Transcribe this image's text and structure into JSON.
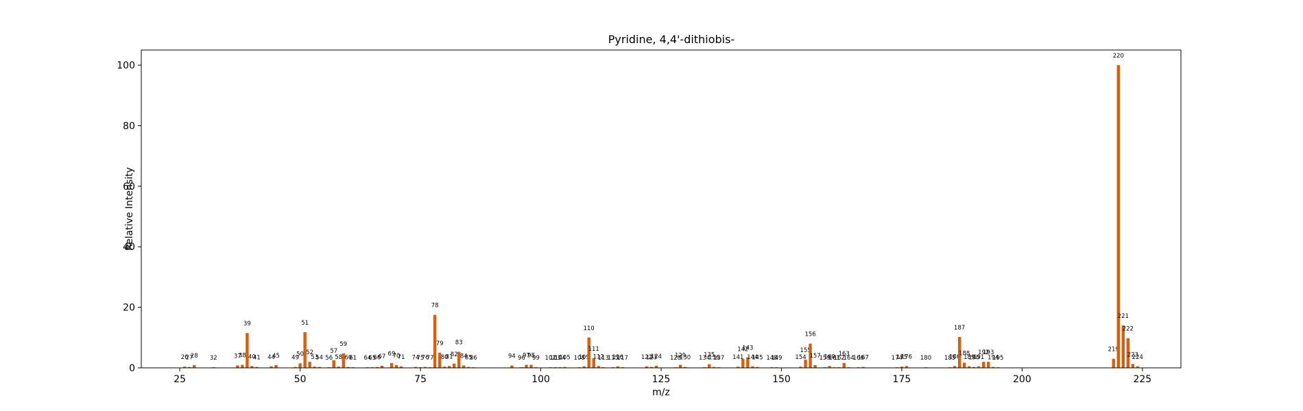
{
  "chart_data": {
    "type": "bar",
    "title": "Pyridine, 4,4'-dithiobis-",
    "xlabel": "m/z",
    "ylabel": "Relative Intensity",
    "xlim": [
      17,
      233
    ],
    "ylim": [
      0,
      105
    ],
    "xticks": [
      25,
      50,
      75,
      100,
      125,
      150,
      175,
      200,
      225
    ],
    "yticks": [
      0,
      20,
      40,
      60,
      80,
      100
    ],
    "bar_color": "#d95f0e",
    "grid": false,
    "peaks": [
      {
        "mz": 26,
        "intensity": 0.4,
        "label": "26"
      },
      {
        "mz": 27,
        "intensity": 0.3,
        "label": "27"
      },
      {
        "mz": 28,
        "intensity": 0.9,
        "label": "28"
      },
      {
        "mz": 32,
        "intensity": 0.2,
        "label": "32"
      },
      {
        "mz": 37,
        "intensity": 0.8,
        "label": "37"
      },
      {
        "mz": 38,
        "intensity": 1.0,
        "label": "38"
      },
      {
        "mz": 39,
        "intensity": 11.5,
        "label": "39"
      },
      {
        "mz": 40,
        "intensity": 0.6,
        "label": "40"
      },
      {
        "mz": 41,
        "intensity": 0.3,
        "label": "41"
      },
      {
        "mz": 44,
        "intensity": 0.5,
        "label": "44"
      },
      {
        "mz": 45,
        "intensity": 0.9,
        "label": "45"
      },
      {
        "mz": 49,
        "intensity": 0.3,
        "label": "49"
      },
      {
        "mz": 50,
        "intensity": 1.5,
        "label": "50"
      },
      {
        "mz": 51,
        "intensity": 11.8,
        "label": "51"
      },
      {
        "mz": 52,
        "intensity": 2.0,
        "label": "52"
      },
      {
        "mz": 53,
        "intensity": 0.4,
        "label": "53"
      },
      {
        "mz": 54,
        "intensity": 0.3,
        "label": "54"
      },
      {
        "mz": 56,
        "intensity": 0.2,
        "label": "56"
      },
      {
        "mz": 57,
        "intensity": 2.5,
        "label": "57"
      },
      {
        "mz": 58,
        "intensity": 0.4,
        "label": "58"
      },
      {
        "mz": 59,
        "intensity": 4.8,
        "label": "59"
      },
      {
        "mz": 60,
        "intensity": 0.3,
        "label": "60"
      },
      {
        "mz": 61,
        "intensity": 0.2,
        "label": "61"
      },
      {
        "mz": 64,
        "intensity": 0.2,
        "label": "64"
      },
      {
        "mz": 65,
        "intensity": 0.2,
        "label": "65"
      },
      {
        "mz": 66,
        "intensity": 0.3,
        "label": "66"
      },
      {
        "mz": 67,
        "intensity": 0.7,
        "label": "67"
      },
      {
        "mz": 69,
        "intensity": 1.6,
        "label": "69"
      },
      {
        "mz": 70,
        "intensity": 0.9,
        "label": "70"
      },
      {
        "mz": 71,
        "intensity": 0.5,
        "label": "71"
      },
      {
        "mz": 74,
        "intensity": 0.3,
        "label": "74"
      },
      {
        "mz": 75,
        "intensity": 0.2,
        "label": "75"
      },
      {
        "mz": 76,
        "intensity": 0.3,
        "label": "76"
      },
      {
        "mz": 77,
        "intensity": 0.2,
        "label": "77"
      },
      {
        "mz": 78,
        "intensity": 17.5,
        "label": "78"
      },
      {
        "mz": 79,
        "intensity": 5.0,
        "label": "79"
      },
      {
        "mz": 80,
        "intensity": 0.4,
        "label": "80"
      },
      {
        "mz": 81,
        "intensity": 0.6,
        "label": "81"
      },
      {
        "mz": 82,
        "intensity": 1.4,
        "label": "82"
      },
      {
        "mz": 83,
        "intensity": 5.3,
        "label": "83"
      },
      {
        "mz": 84,
        "intensity": 0.8,
        "label": "84"
      },
      {
        "mz": 85,
        "intensity": 0.3,
        "label": "85"
      },
      {
        "mz": 86,
        "intensity": 0.2,
        "label": "86"
      },
      {
        "mz": 94,
        "intensity": 0.8,
        "label": "94"
      },
      {
        "mz": 96,
        "intensity": 0.2,
        "label": "96"
      },
      {
        "mz": 97,
        "intensity": 1.0,
        "label": "97"
      },
      {
        "mz": 98,
        "intensity": 1.0,
        "label": "98"
      },
      {
        "mz": 99,
        "intensity": 0.2,
        "label": "99"
      },
      {
        "mz": 102,
        "intensity": 0.2,
        "label": "102"
      },
      {
        "mz": 103,
        "intensity": 0.2,
        "label": "103"
      },
      {
        "mz": 104,
        "intensity": 0.2,
        "label": "104"
      },
      {
        "mz": 105,
        "intensity": 0.3,
        "label": "105"
      },
      {
        "mz": 108,
        "intensity": 0.2,
        "label": "108"
      },
      {
        "mz": 109,
        "intensity": 0.5,
        "label": "109"
      },
      {
        "mz": 110,
        "intensity": 10.0,
        "label": "110"
      },
      {
        "mz": 111,
        "intensity": 3.2,
        "label": "111"
      },
      {
        "mz": 112,
        "intensity": 0.6,
        "label": "112"
      },
      {
        "mz": 113,
        "intensity": 0.2,
        "label": "113"
      },
      {
        "mz": 115,
        "intensity": 0.2,
        "label": "115"
      },
      {
        "mz": 116,
        "intensity": 0.5,
        "label": "116"
      },
      {
        "mz": 117,
        "intensity": 0.2,
        "label": "117"
      },
      {
        "mz": 122,
        "intensity": 0.5,
        "label": "122"
      },
      {
        "mz": 123,
        "intensity": 0.3,
        "label": "123"
      },
      {
        "mz": 124,
        "intensity": 0.7,
        "label": "124"
      },
      {
        "mz": 128,
        "intensity": 0.2,
        "label": "128"
      },
      {
        "mz": 129,
        "intensity": 1.0,
        "label": "129"
      },
      {
        "mz": 130,
        "intensity": 0.3,
        "label": "130"
      },
      {
        "mz": 134,
        "intensity": 0.2,
        "label": "134"
      },
      {
        "mz": 135,
        "intensity": 1.2,
        "label": "135"
      },
      {
        "mz": 136,
        "intensity": 0.3,
        "label": "136"
      },
      {
        "mz": 137,
        "intensity": 0.2,
        "label": "137"
      },
      {
        "mz": 141,
        "intensity": 0.4,
        "label": "141"
      },
      {
        "mz": 142,
        "intensity": 3.0,
        "label": "142"
      },
      {
        "mz": 143,
        "intensity": 3.5,
        "label": "143"
      },
      {
        "mz": 144,
        "intensity": 0.5,
        "label": "144"
      },
      {
        "mz": 145,
        "intensity": 0.3,
        "label": "145"
      },
      {
        "mz": 148,
        "intensity": 0.2,
        "label": "148"
      },
      {
        "mz": 149,
        "intensity": 0.2,
        "label": "149"
      },
      {
        "mz": 154,
        "intensity": 0.4,
        "label": "154"
      },
      {
        "mz": 155,
        "intensity": 2.7,
        "label": "155"
      },
      {
        "mz": 156,
        "intensity": 8.0,
        "label": "156"
      },
      {
        "mz": 157,
        "intensity": 0.9,
        "label": "157"
      },
      {
        "mz": 159,
        "intensity": 0.2,
        "label": "159"
      },
      {
        "mz": 160,
        "intensity": 0.6,
        "label": "160"
      },
      {
        "mz": 161,
        "intensity": 0.2,
        "label": "161"
      },
      {
        "mz": 162,
        "intensity": 0.2,
        "label": "162"
      },
      {
        "mz": 163,
        "intensity": 1.6,
        "label": "163"
      },
      {
        "mz": 164,
        "intensity": 0.2,
        "label": "164"
      },
      {
        "mz": 166,
        "intensity": 0.2,
        "label": "166"
      },
      {
        "mz": 167,
        "intensity": 0.3,
        "label": "167"
      },
      {
        "mz": 174,
        "intensity": 0.2,
        "label": "174"
      },
      {
        "mz": 175,
        "intensity": 0.4,
        "label": "175"
      },
      {
        "mz": 176,
        "intensity": 0.6,
        "label": "176"
      },
      {
        "mz": 180,
        "intensity": 0.2,
        "label": "180"
      },
      {
        "mz": 185,
        "intensity": 0.2,
        "label": "185"
      },
      {
        "mz": 186,
        "intensity": 0.6,
        "label": "186"
      },
      {
        "mz": 187,
        "intensity": 10.2,
        "label": "187"
      },
      {
        "mz": 188,
        "intensity": 1.7,
        "label": "188"
      },
      {
        "mz": 189,
        "intensity": 0.5,
        "label": "189"
      },
      {
        "mz": 190,
        "intensity": 0.3,
        "label": "190"
      },
      {
        "mz": 191,
        "intensity": 0.5,
        "label": "191"
      },
      {
        "mz": 192,
        "intensity": 2.0,
        "label": "192"
      },
      {
        "mz": 193,
        "intensity": 2.0,
        "label": "193"
      },
      {
        "mz": 194,
        "intensity": 0.3,
        "label": "194"
      },
      {
        "mz": 195,
        "intensity": 0.2,
        "label": "195"
      },
      {
        "mz": 219,
        "intensity": 3.0,
        "label": "219"
      },
      {
        "mz": 220,
        "intensity": 100,
        "label": "220"
      },
      {
        "mz": 221,
        "intensity": 14.0,
        "label": "221"
      },
      {
        "mz": 222,
        "intensity": 9.8,
        "label": "222"
      },
      {
        "mz": 223,
        "intensity": 1.3,
        "label": "223"
      },
      {
        "mz": 224,
        "intensity": 0.5,
        "label": "224"
      }
    ]
  }
}
